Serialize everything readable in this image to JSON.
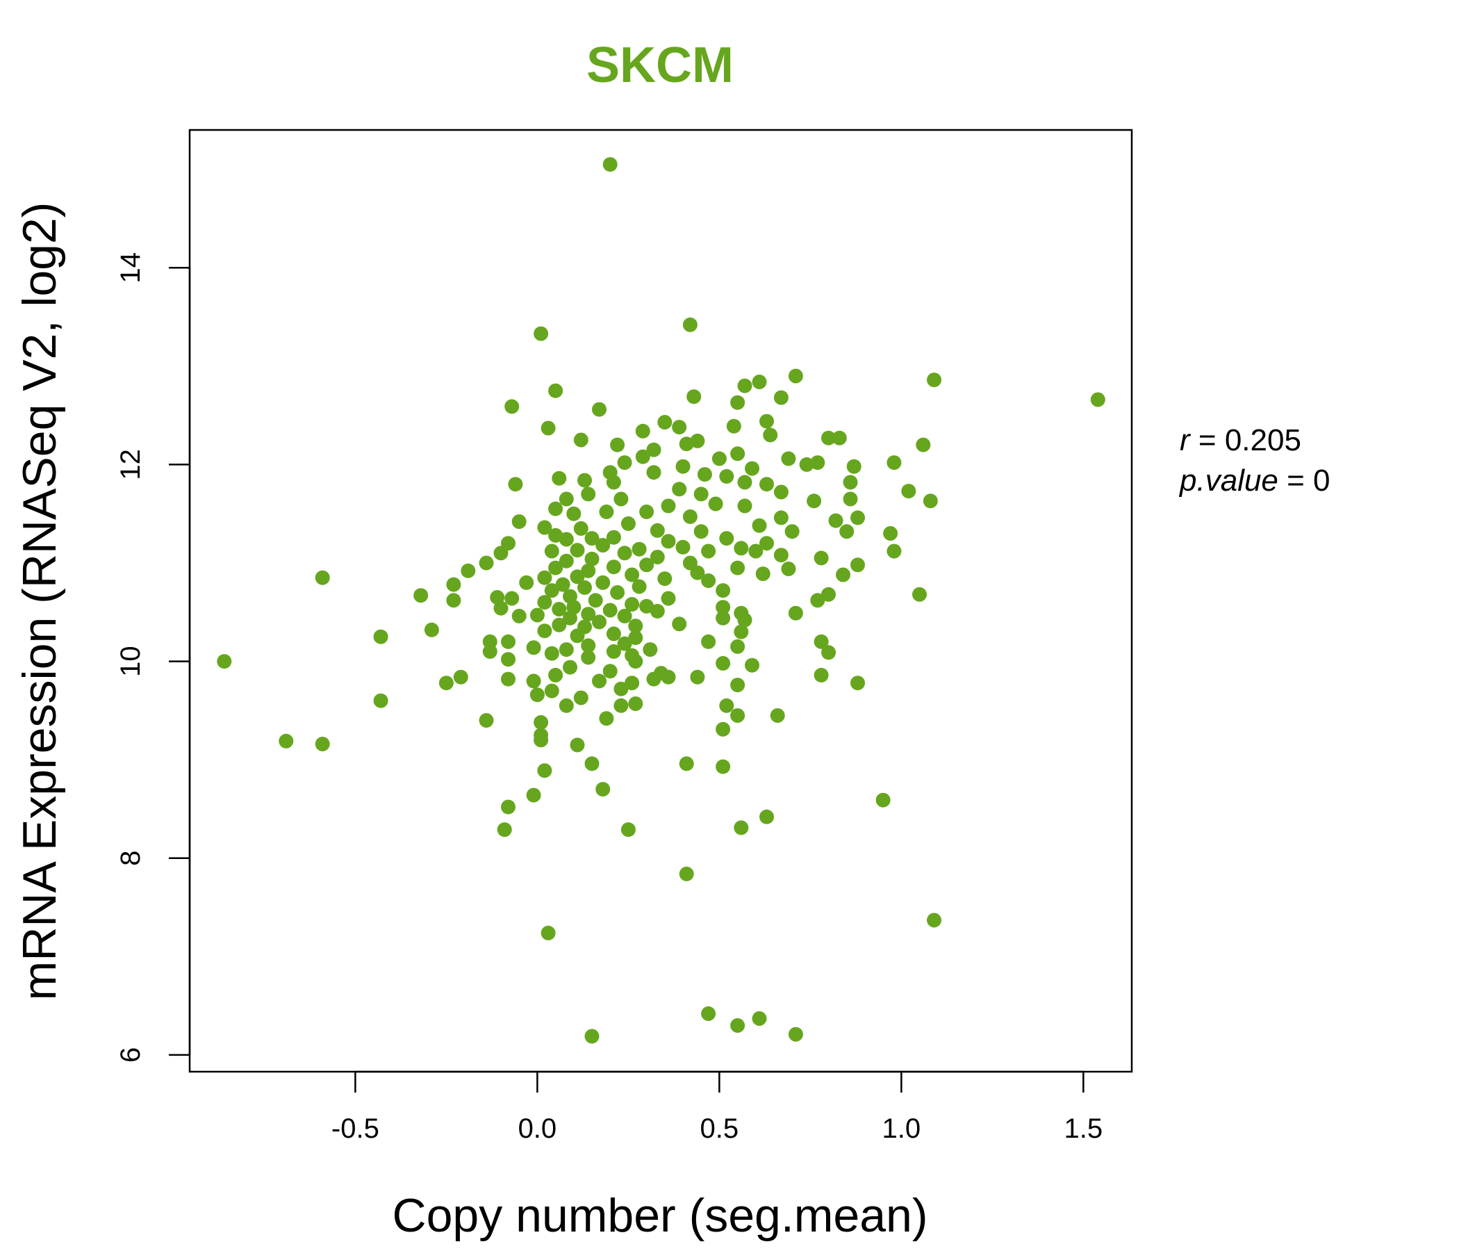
{
  "chart_data": {
    "type": "scatter",
    "title": "SKCM",
    "xlabel": "Copy number (seg.mean)",
    "ylabel": "mRNA Expression (RNASeq V2, log2)",
    "xlim": [
      -0.955,
      1.633
    ],
    "ylim": [
      5.83,
      15.4
    ],
    "x_ticks": [
      -0.5,
      0.0,
      0.5,
      1.0,
      1.5
    ],
    "x_tick_labels": [
      "-0.5",
      "0.0",
      "0.5",
      "1.0",
      "1.5"
    ],
    "y_ticks": [
      6,
      8,
      10,
      12,
      14
    ],
    "y_tick_labels": [
      "6",
      "8",
      "10",
      "12",
      "14"
    ],
    "grid": false,
    "legend": "none",
    "color": "#66A61E",
    "annotation": {
      "r_label": "r",
      "r_value": "0.205",
      "p_label": "p.value",
      "p_value": "0"
    },
    "points": [
      [
        0.2,
        15.05
      ],
      [
        0.42,
        13.42
      ],
      [
        0.01,
        13.33
      ],
      [
        1.09,
        12.86
      ],
      [
        1.54,
        12.66
      ],
      [
        0.71,
        12.9
      ],
      [
        0.61,
        12.84
      ],
      [
        0.57,
        12.8
      ],
      [
        0.05,
        12.75
      ],
      [
        0.43,
        12.69
      ],
      [
        0.67,
        12.68
      ],
      [
        -0.07,
        12.59
      ],
      [
        0.17,
        12.56
      ],
      [
        0.55,
        12.63
      ],
      [
        0.35,
        12.43
      ],
      [
        0.63,
        12.44
      ],
      [
        0.03,
        12.37
      ],
      [
        0.54,
        12.39
      ],
      [
        0.39,
        12.38
      ],
      [
        0.29,
        12.34
      ],
      [
        0.64,
        12.3
      ],
      [
        0.8,
        12.27
      ],
      [
        0.83,
        12.27
      ],
      [
        0.12,
        12.25
      ],
      [
        0.22,
        12.2
      ],
      [
        0.41,
        12.21
      ],
      [
        0.44,
        12.24
      ],
      [
        0.32,
        12.15
      ],
      [
        1.06,
        12.2
      ],
      [
        0.55,
        12.11
      ],
      [
        0.29,
        12.08
      ],
      [
        0.69,
        12.06
      ],
      [
        0.5,
        12.06
      ],
      [
        0.77,
        12.02
      ],
      [
        0.98,
        12.02
      ],
      [
        0.74,
        12.0
      ],
      [
        0.24,
        12.02
      ],
      [
        0.4,
        11.98
      ],
      [
        0.59,
        11.96
      ],
      [
        0.87,
        11.98
      ],
      [
        0.2,
        11.92
      ],
      [
        0.06,
        11.86
      ],
      [
        0.32,
        11.92
      ],
      [
        0.46,
        11.9
      ],
      [
        0.52,
        11.88
      ],
      [
        0.13,
        11.84
      ],
      [
        0.21,
        11.82
      ],
      [
        0.57,
        11.82
      ],
      [
        -0.06,
        11.8
      ],
      [
        0.63,
        11.8
      ],
      [
        0.86,
        11.82
      ],
      [
        1.02,
        11.73
      ],
      [
        0.67,
        11.72
      ],
      [
        0.39,
        11.75
      ],
      [
        0.45,
        11.7
      ],
      [
        0.14,
        11.7
      ],
      [
        0.23,
        11.65
      ],
      [
        0.08,
        11.65
      ],
      [
        0.76,
        11.63
      ],
      [
        1.08,
        11.63
      ],
      [
        0.86,
        11.65
      ],
      [
        0.36,
        11.58
      ],
      [
        0.49,
        11.6
      ],
      [
        0.57,
        11.58
      ],
      [
        0.05,
        11.55
      ],
      [
        0.19,
        11.52
      ],
      [
        0.3,
        11.52
      ],
      [
        0.1,
        11.5
      ],
      [
        0.42,
        11.47
      ],
      [
        0.67,
        11.46
      ],
      [
        0.88,
        11.46
      ],
      [
        0.82,
        11.43
      ],
      [
        -0.05,
        11.42
      ],
      [
        0.25,
        11.4
      ],
      [
        0.61,
        11.38
      ],
      [
        0.02,
        11.36
      ],
      [
        0.12,
        11.35
      ],
      [
        0.33,
        11.33
      ],
      [
        0.7,
        11.32
      ],
      [
        0.45,
        11.32
      ],
      [
        0.85,
        11.32
      ],
      [
        0.97,
        11.3
      ],
      [
        0.05,
        11.28
      ],
      [
        0.21,
        11.26
      ],
      [
        0.15,
        11.25
      ],
      [
        0.52,
        11.25
      ],
      [
        0.08,
        11.24
      ],
      [
        0.36,
        11.22
      ],
      [
        0.63,
        11.2
      ],
      [
        -0.08,
        11.2
      ],
      [
        0.18,
        11.18
      ],
      [
        0.4,
        11.16
      ],
      [
        0.56,
        11.15
      ],
      [
        0.28,
        11.14
      ],
      [
        0.11,
        11.13
      ],
      [
        0.04,
        11.12
      ],
      [
        0.47,
        11.12
      ],
      [
        -0.1,
        11.1
      ],
      [
        0.6,
        11.12
      ],
      [
        0.98,
        11.12
      ],
      [
        0.24,
        11.1
      ],
      [
        0.67,
        11.08
      ],
      [
        0.33,
        11.06
      ],
      [
        0.78,
        11.05
      ],
      [
        0.15,
        11.04
      ],
      [
        0.08,
        11.02
      ],
      [
        -0.14,
        11.0
      ],
      [
        0.42,
        11.0
      ],
      [
        0.3,
        10.98
      ],
      [
        0.88,
        10.98
      ],
      [
        0.21,
        10.96
      ],
      [
        0.05,
        10.95
      ],
      [
        0.55,
        10.95
      ],
      [
        0.69,
        10.94
      ],
      [
        -0.19,
        10.92
      ],
      [
        0.14,
        10.92
      ],
      [
        0.44,
        10.9
      ],
      [
        0.62,
        10.89
      ],
      [
        0.84,
        10.88
      ],
      [
        0.26,
        10.88
      ],
      [
        0.11,
        10.86
      ],
      [
        0.02,
        10.85
      ],
      [
        -0.59,
        10.85
      ],
      [
        0.35,
        10.84
      ],
      [
        0.47,
        10.82
      ],
      [
        0.18,
        10.8
      ],
      [
        -0.03,
        10.8
      ],
      [
        0.07,
        10.78
      ],
      [
        -0.23,
        10.78
      ],
      [
        0.28,
        10.76
      ],
      [
        0.13,
        10.75
      ],
      [
        0.51,
        10.72
      ],
      [
        0.04,
        10.72
      ],
      [
        0.22,
        10.7
      ],
      [
        0.8,
        10.68
      ],
      [
        1.05,
        10.68
      ],
      [
        -0.32,
        10.67
      ],
      [
        0.09,
        10.66
      ],
      [
        -0.11,
        10.65
      ],
      [
        0.36,
        10.64
      ],
      [
        -0.07,
        10.64
      ],
      [
        0.16,
        10.62
      ],
      [
        0.77,
        10.62
      ],
      [
        -0.23,
        10.62
      ],
      [
        0.02,
        10.6
      ],
      [
        0.26,
        10.58
      ],
      [
        0.3,
        10.56
      ],
      [
        0.1,
        10.55
      ],
      [
        0.51,
        10.55
      ],
      [
        -0.1,
        10.54
      ],
      [
        0.06,
        10.53
      ],
      [
        0.2,
        10.52
      ],
      [
        0.33,
        10.51
      ],
      [
        0.71,
        10.49
      ],
      [
        0.56,
        10.49
      ],
      [
        0.14,
        10.48
      ],
      [
        0.0,
        10.47
      ],
      [
        -0.05,
        10.46
      ],
      [
        0.24,
        10.46
      ],
      [
        0.09,
        10.44
      ],
      [
        0.51,
        10.44
      ],
      [
        0.57,
        10.42
      ],
      [
        0.17,
        10.4
      ],
      [
        0.39,
        10.38
      ],
      [
        0.06,
        10.37
      ],
      [
        0.27,
        10.36
      ],
      [
        0.13,
        10.35
      ],
      [
        -0.29,
        10.32
      ],
      [
        0.02,
        10.31
      ],
      [
        0.56,
        10.3
      ],
      [
        0.21,
        10.28
      ],
      [
        0.11,
        10.26
      ],
      [
        0.27,
        10.24
      ],
      [
        -0.43,
        10.25
      ],
      [
        0.78,
        10.2
      ],
      [
        0.47,
        10.2
      ],
      [
        -0.08,
        10.2
      ],
      [
        -0.13,
        10.2
      ],
      [
        0.24,
        10.18
      ],
      [
        0.14,
        10.16
      ],
      [
        0.55,
        10.15
      ],
      [
        -0.01,
        10.14
      ],
      [
        0.08,
        10.12
      ],
      [
        0.31,
        10.12
      ],
      [
        0.21,
        10.1
      ],
      [
        -0.13,
        10.1
      ],
      [
        0.8,
        10.09
      ],
      [
        0.04,
        10.08
      ],
      [
        0.26,
        10.06
      ],
      [
        0.14,
        10.04
      ],
      [
        -0.08,
        10.02
      ],
      [
        0.27,
        10.0
      ],
      [
        -0.86,
        10.0
      ],
      [
        0.51,
        9.98
      ],
      [
        0.59,
        9.96
      ],
      [
        0.09,
        9.94
      ],
      [
        0.2,
        9.9
      ],
      [
        0.34,
        9.88
      ],
      [
        0.05,
        9.86
      ],
      [
        0.78,
        9.86
      ],
      [
        0.36,
        9.84
      ],
      [
        0.44,
        9.84
      ],
      [
        -0.21,
        9.84
      ],
      [
        -0.08,
        9.82
      ],
      [
        0.32,
        9.82
      ],
      [
        0.17,
        9.8
      ],
      [
        -0.01,
        9.8
      ],
      [
        -0.25,
        9.78
      ],
      [
        0.26,
        9.78
      ],
      [
        0.88,
        9.78
      ],
      [
        0.55,
        9.76
      ],
      [
        0.23,
        9.72
      ],
      [
        0.04,
        9.7
      ],
      [
        0.0,
        9.66
      ],
      [
        0.12,
        9.63
      ],
      [
        -0.43,
        9.6
      ],
      [
        0.27,
        9.57
      ],
      [
        0.08,
        9.55
      ],
      [
        0.52,
        9.55
      ],
      [
        0.23,
        9.55
      ],
      [
        0.55,
        9.45
      ],
      [
        0.66,
        9.45
      ],
      [
        0.19,
        9.42
      ],
      [
        -0.14,
        9.4
      ],
      [
        0.01,
        9.38
      ],
      [
        0.51,
        9.31
      ],
      [
        0.01,
        9.25
      ],
      [
        0.01,
        9.2
      ],
      [
        -0.69,
        9.19
      ],
      [
        -0.59,
        9.16
      ],
      [
        0.11,
        9.15
      ],
      [
        0.15,
        8.96
      ],
      [
        0.41,
        8.96
      ],
      [
        0.51,
        8.93
      ],
      [
        0.02,
        8.89
      ],
      [
        0.18,
        8.7
      ],
      [
        0.95,
        8.59
      ],
      [
        -0.01,
        8.64
      ],
      [
        -0.08,
        8.52
      ],
      [
        0.63,
        8.42
      ],
      [
        0.56,
        8.31
      ],
      [
        -0.09,
        8.29
      ],
      [
        0.25,
        8.29
      ],
      [
        0.41,
        7.84
      ],
      [
        1.09,
        7.37
      ],
      [
        0.03,
        7.24
      ],
      [
        0.47,
        6.42
      ],
      [
        0.61,
        6.37
      ],
      [
        0.55,
        6.3
      ],
      [
        0.71,
        6.21
      ],
      [
        0.15,
        6.19
      ]
    ]
  }
}
